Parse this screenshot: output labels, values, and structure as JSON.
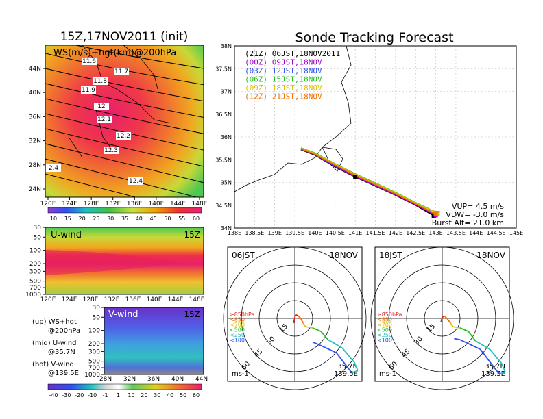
{
  "title_left": "15Z,17NOV2011 (init)",
  "title_right": "Sonde Tracking Forecast",
  "colors": {
    "accent_red": "#e8203c",
    "schedule_colors": [
      "#000000",
      "#a000c8",
      "#3050f0",
      "#20c020",
      "#e0c000",
      "#f07000"
    ]
  },
  "chart_data": [
    {
      "type": "heatmap",
      "panel": "ws-hgt-200hpa-map",
      "title": "WS(m/s)+hgt(km)@200hPa",
      "x_ticks": [
        "120E",
        "124E",
        "128E",
        "132E",
        "136E",
        "140E",
        "144E",
        "148E"
      ],
      "y_ticks": [
        "24N",
        "28N",
        "32N",
        "36N",
        "40N",
        "44N"
      ],
      "contour_labels": [
        "11.6",
        "11.7",
        "11.8",
        "11.9",
        "12",
        "12.1",
        "12.2",
        "12.3",
        "2.4",
        "12.4"
      ],
      "colorbar_ticks": [
        "10",
        "15",
        "20",
        "25",
        "30",
        "35",
        "40",
        "45",
        "50",
        "55",
        "60"
      ],
      "grid": false
    },
    {
      "type": "heatmap",
      "panel": "u-wind-cross-section",
      "title": "U-wind",
      "time_label": "15Z",
      "x_ticks": [
        "120E",
        "124E",
        "128E",
        "132E",
        "136E",
        "140E",
        "144E",
        "148E"
      ],
      "y_ticks": [
        "30",
        "50",
        "100",
        "200",
        "300",
        "500",
        "700",
        "1000"
      ],
      "ylim": [
        1000,
        30
      ],
      "y_scale": "log"
    },
    {
      "type": "heatmap",
      "panel": "v-wind-cross-section",
      "title": "V-wind",
      "time_label": "15Z",
      "x_ticks": [
        "28N",
        "32N",
        "36N",
        "40N",
        "44N"
      ],
      "y_ticks": [
        "30",
        "50",
        "100",
        "200",
        "300",
        "500",
        "700",
        "1000"
      ],
      "ylim": [
        1000,
        30
      ],
      "y_scale": "log",
      "colorbar_ticks": [
        "-40",
        "-30",
        "-20",
        "-10",
        "-1",
        "1",
        "10",
        "20",
        "30",
        "40",
        "50",
        "60"
      ]
    },
    {
      "type": "line",
      "panel": "sonde-track-map",
      "x_ticks": [
        "138E",
        "138.5E",
        "139E",
        "139.5E",
        "140E",
        "140.5E",
        "141E",
        "141.5E",
        "142E",
        "142.5E",
        "143E",
        "143.5E",
        "144E",
        "144.5E",
        "145E"
      ],
      "y_ticks": [
        "34N",
        "34.5N",
        "35N",
        "35.5N",
        "36N",
        "36.5N",
        "37N",
        "37.5N",
        "38N"
      ],
      "xlim": [
        138,
        145
      ],
      "ylim": [
        34,
        38
      ],
      "grid": true,
      "legend_placement": "top-left",
      "series": [
        {
          "name": "(21Z) 06JST,18NOV2011",
          "color": "#000000",
          "x": [
            139.65,
            140.0,
            140.5,
            141.0,
            141.5,
            142.0,
            142.5,
            142.95
          ],
          "y": [
            35.72,
            35.6,
            35.34,
            35.12,
            34.92,
            34.72,
            34.5,
            34.27
          ]
        },
        {
          "name": "(00Z) 09JST,18NOV",
          "color": "#a000c8",
          "x": [
            139.65,
            140.0,
            140.5,
            141.0,
            141.5,
            142.0,
            142.5,
            143.0
          ],
          "y": [
            35.73,
            35.61,
            35.35,
            35.13,
            34.93,
            34.73,
            34.51,
            34.28
          ]
        },
        {
          "name": "(03Z) 12JST,18NOV",
          "color": "#3050f0",
          "x": [
            139.65,
            140.0,
            140.5,
            141.0,
            141.5,
            142.0,
            142.5,
            143.02
          ],
          "y": [
            35.74,
            35.62,
            35.37,
            35.16,
            34.96,
            34.75,
            34.53,
            34.3
          ]
        },
        {
          "name": "(06Z) 15JST,18NOV",
          "color": "#20c020",
          "x": [
            139.65,
            140.0,
            140.5,
            141.0,
            141.5,
            142.0,
            142.5,
            143.05
          ],
          "y": [
            35.76,
            35.65,
            35.41,
            35.19,
            34.99,
            34.78,
            34.56,
            34.33
          ]
        },
        {
          "name": "(09Z) 18JST,18NOV",
          "color": "#e0c000",
          "x": [
            139.65,
            140.0,
            140.5,
            141.0,
            141.5,
            142.0,
            142.5,
            143.05
          ],
          "y": [
            35.75,
            35.64,
            35.4,
            35.18,
            34.98,
            34.77,
            34.55,
            34.32
          ]
        },
        {
          "name": "(12Z) 21JST,18NOV",
          "color": "#f07000",
          "x": [
            139.65,
            140.0,
            140.5,
            141.0,
            141.5,
            142.0,
            142.5,
            143.0
          ],
          "y": [
            35.74,
            35.62,
            35.38,
            35.16,
            34.96,
            34.75,
            34.53,
            34.3
          ]
        }
      ],
      "annotations": [
        "VUP= 4.5 m/s",
        "VDW= -3.0 m/s",
        "Burst Alt= 21.0 km"
      ]
    },
    {
      "type": "line",
      "panel": "hodograph-06jst",
      "time_label": "06JST",
      "date_label": "18NOV",
      "ring_labels": [
        "15",
        "30",
        "45",
        "60"
      ],
      "level_legend": [
        "≥850hPa",
        "<850",
        "<700",
        "<500",
        "<250",
        "<100"
      ],
      "level_colors": [
        "#e02020",
        "#f07000",
        "#e0c000",
        "#20c020",
        "#20c0c0",
        "#3050f0"
      ],
      "unit": "ms-1",
      "location": [
        "35.7N",
        "139.5E"
      ]
    },
    {
      "type": "line",
      "panel": "hodograph-18jst",
      "time_label": "18JST",
      "date_label": "18NOV",
      "ring_labels": [
        "15",
        "30",
        "45",
        "60"
      ],
      "level_legend": [
        "≥850hPa",
        "<850",
        "<700",
        "<500",
        "<250",
        "<100"
      ],
      "level_colors": [
        "#e02020",
        "#f07000",
        "#e0c000",
        "#20c020",
        "#20c0c0",
        "#3050f0"
      ],
      "unit": "ms-1",
      "location": [
        "35.7N",
        "139.5E"
      ]
    }
  ],
  "notes_block": {
    "lines": [
      "(up) WS+hgt",
      "@200hPa",
      "(mid) U-wind",
      "@35.7N",
      "(bot) V-wind",
      "@139.5E"
    ]
  }
}
